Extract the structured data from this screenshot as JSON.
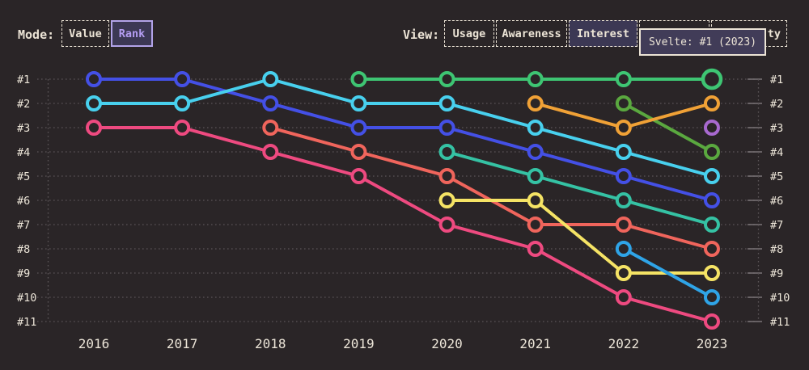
{
  "toolbar": {
    "mode": {
      "label": "Mode:",
      "options": [
        {
          "label": "Value",
          "selected": false
        },
        {
          "label": "Rank",
          "selected": true
        }
      ]
    },
    "view": {
      "label": "View:",
      "options": [
        {
          "label": "Usage",
          "selected": false
        },
        {
          "label": "Awareness",
          "selected": false
        },
        {
          "label": "Interest",
          "selected": true
        },
        {
          "label": "",
          "selected": false,
          "obscured_by_tooltip": true
        },
        {
          "label": "ty",
          "selected": false,
          "partially_visible": true
        }
      ]
    }
  },
  "tooltip": {
    "text": "Svelte: #1 (2023)"
  },
  "theme": {
    "background": "#2a2527",
    "text_cream": "#ece4d6",
    "selected_bg": "#3c3854",
    "selected_mode_text": "#b49df2",
    "selected_mode_border": "#b2a3e8",
    "gridline": "#5b5557"
  },
  "chart_data": {
    "type": "line",
    "subtype": "bump-rank-chart",
    "title": "",
    "x_labels": [
      "2016",
      "2017",
      "2018",
      "2019",
      "2020",
      "2021",
      "2022",
      "2023"
    ],
    "rank_labels": [
      "#1",
      "#2",
      "#3",
      "#4",
      "#5",
      "#6",
      "#7",
      "#8",
      "#9",
      "#10",
      "#11"
    ],
    "y_axis": {
      "direction": "rank-1-top",
      "shown_on": "both-sides"
    },
    "grid": "dotted-horizontal-per-rank",
    "legend": "none",
    "series": [
      {
        "name": "pink",
        "color": "#ee4a80",
        "points": [
          [
            2016,
            3
          ],
          [
            2017,
            3
          ],
          [
            2018,
            4
          ],
          [
            2019,
            5
          ],
          [
            2020,
            7
          ],
          [
            2021,
            8
          ],
          [
            2022,
            10
          ],
          [
            2023,
            11
          ]
        ]
      },
      {
        "name": "coral",
        "color": "#f0655c",
        "points": [
          [
            2018,
            3
          ],
          [
            2019,
            4
          ],
          [
            2020,
            5
          ],
          [
            2021,
            7
          ],
          [
            2022,
            7
          ],
          [
            2023,
            8
          ]
        ]
      },
      {
        "name": "yellow",
        "color": "#f5e365",
        "points": [
          [
            2020,
            6
          ],
          [
            2021,
            6
          ],
          [
            2022,
            9
          ],
          [
            2023,
            9
          ]
        ]
      },
      {
        "name": "sky-blue",
        "color": "#2fa4e7",
        "points": [
          [
            2022,
            8
          ],
          [
            2023,
            10
          ]
        ]
      },
      {
        "name": "teal",
        "color": "#35c2a4",
        "points": [
          [
            2020,
            4
          ],
          [
            2021,
            5
          ],
          [
            2022,
            6
          ],
          [
            2023,
            7
          ]
        ]
      },
      {
        "name": "blue",
        "color": "#4450e6",
        "points": [
          [
            2016,
            1
          ],
          [
            2017,
            1
          ],
          [
            2018,
            2
          ],
          [
            2019,
            3
          ],
          [
            2020,
            3
          ],
          [
            2021,
            4
          ],
          [
            2022,
            5
          ],
          [
            2023,
            6
          ]
        ]
      },
      {
        "name": "cyan",
        "color": "#48d0ee",
        "points": [
          [
            2016,
            2
          ],
          [
            2017,
            2
          ],
          [
            2018,
            1
          ],
          [
            2019,
            2
          ],
          [
            2020,
            2
          ],
          [
            2021,
            3
          ],
          [
            2022,
            4
          ],
          [
            2023,
            5
          ]
        ]
      },
      {
        "name": "lime-green",
        "color": "#5aa83f",
        "points": [
          [
            2022,
            2
          ],
          [
            2023,
            4
          ]
        ]
      },
      {
        "name": "orange",
        "color": "#f0a136",
        "points": [
          [
            2021,
            2
          ],
          [
            2022,
            3
          ],
          [
            2023,
            2
          ]
        ]
      },
      {
        "name": "purple",
        "color": "#a869cf",
        "points": [
          [
            2023,
            3
          ]
        ]
      },
      {
        "name": "Svelte",
        "color": "#3ec573",
        "points": [
          [
            2019,
            1
          ],
          [
            2020,
            1
          ],
          [
            2021,
            1
          ],
          [
            2022,
            1
          ],
          [
            2023,
            1
          ]
        ]
      }
    ],
    "highlight_point": {
      "series": "Svelte",
      "x": 2023,
      "rank": 1,
      "tooltip": "Svelte: #1 (2023)"
    }
  }
}
